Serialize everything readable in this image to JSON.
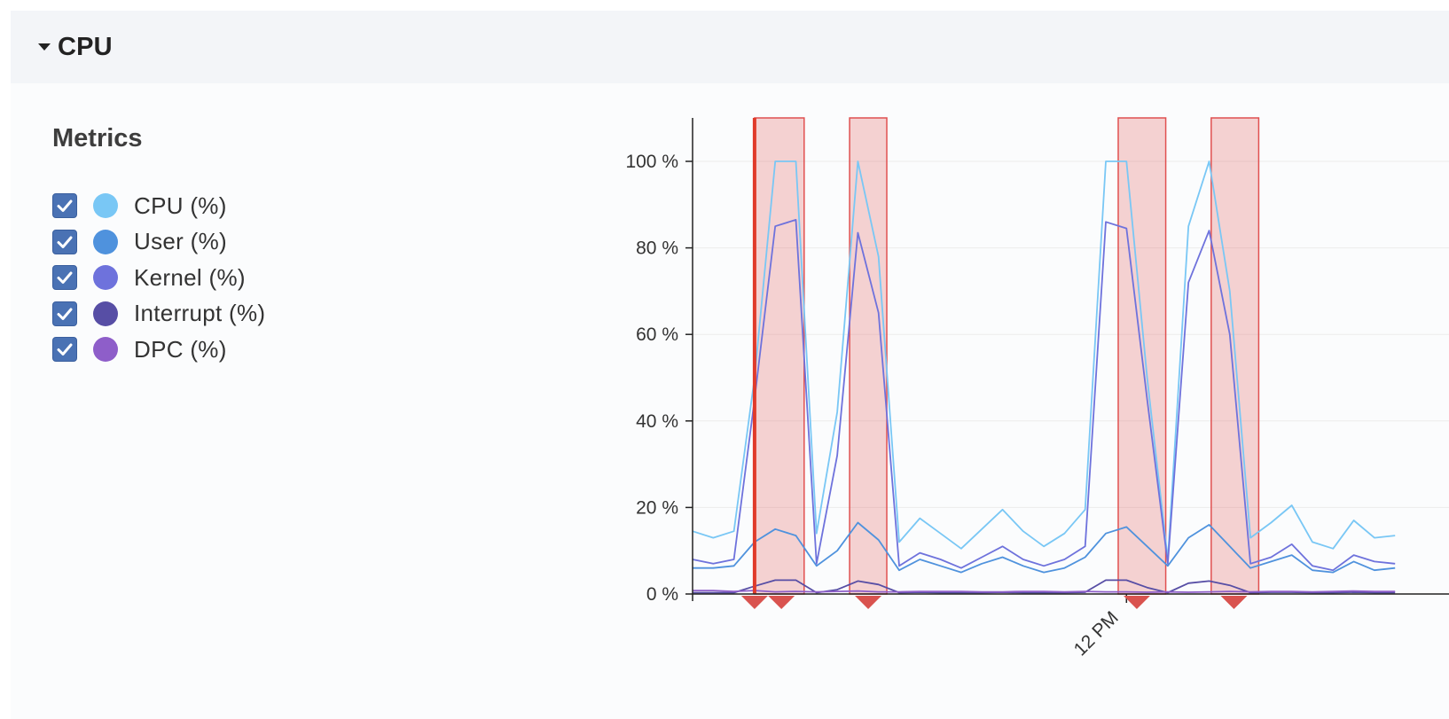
{
  "panel": {
    "title": "CPU",
    "metrics_title": "Metrics"
  },
  "legend": [
    {
      "label": "CPU (%)",
      "color": "#79c7f5",
      "checked": true
    },
    {
      "label": "User (%)",
      "color": "#4f92dd",
      "checked": true
    },
    {
      "label": "Kernel (%)",
      "color": "#6e72dc",
      "checked": true
    },
    {
      "label": "Interrupt (%)",
      "color": "#574ea5",
      "checked": true
    },
    {
      "label": "DPC (%)",
      "color": "#8e5ec9",
      "checked": true
    }
  ],
  "chart_data": {
    "type": "line",
    "ylim": [
      0,
      110
    ],
    "y_ticks": [
      {
        "value": 0,
        "label": "0 %"
      },
      {
        "value": 20,
        "label": "20 %"
      },
      {
        "value": 40,
        "label": "40 %"
      },
      {
        "value": 60,
        "label": "60 %"
      },
      {
        "value": 80,
        "label": "80 %"
      },
      {
        "value": 100,
        "label": "100 %"
      }
    ],
    "x_tick_label": "12 PM",
    "x_tick_index": 21,
    "grid": true,
    "highlight_color": "#e05050",
    "highlights": [
      {
        "start": 3,
        "end": 5.4
      },
      {
        "start": 7.6,
        "end": 9.4
      },
      {
        "start": 20.6,
        "end": 22.9
      },
      {
        "start": 25.1,
        "end": 27.4
      }
    ],
    "alert_markers": [
      3,
      4.3,
      8.5,
      21.5,
      26.2
    ],
    "series": [
      {
        "color": "#79c7f5",
        "values": [
          14.5,
          13,
          14.5,
          50,
          100,
          100,
          14,
          42,
          100,
          78,
          12,
          17.5,
          14,
          10.5,
          15,
          19.5,
          14.5,
          11,
          14,
          19.5,
          100,
          100,
          50,
          8,
          85,
          100,
          70,
          13,
          16.5,
          20.5,
          12,
          10.5,
          17,
          13,
          13.5
        ]
      },
      {
        "color": "#4f92dd",
        "values": [
          6,
          6,
          6.5,
          12,
          15,
          13.5,
          6.5,
          10,
          16.5,
          12.5,
          5.5,
          8,
          6.5,
          5,
          7,
          8.5,
          6.5,
          5,
          6,
          8.5,
          14,
          15.5,
          11,
          6.5,
          13,
          16,
          11,
          6,
          7.5,
          9,
          5.5,
          5,
          7.5,
          5.5,
          6
        ]
      },
      {
        "color": "#6e72dc",
        "values": [
          8,
          7,
          8,
          45,
          85,
          86.5,
          7,
          32,
          83.5,
          65,
          6.5,
          9.5,
          8,
          6,
          8.5,
          11,
          8,
          6.5,
          8,
          11,
          86,
          84.5,
          45,
          7,
          72,
          84,
          60,
          7,
          8.5,
          11.5,
          6.5,
          5.5,
          9,
          7.5,
          7
        ]
      },
      {
        "color": "#574ea5",
        "values": [
          0.3,
          0.3,
          0.3,
          1.8,
          3.2,
          3.2,
          0.3,
          1,
          3,
          2.2,
          0.3,
          0.4,
          0.3,
          0.3,
          0.3,
          0.4,
          0.3,
          0.3,
          0.3,
          0.4,
          3.2,
          3.2,
          1.5,
          0.3,
          2.5,
          3,
          2,
          0.3,
          0.4,
          0.4,
          0.3,
          0.3,
          0.4,
          0.3,
          0.3
        ]
      },
      {
        "color": "#8e5ec9",
        "values": [
          0.8,
          0.8,
          0.6,
          0.8,
          0.5,
          0.6,
          0.5,
          0.6,
          0.7,
          0.5,
          0.5,
          0.6,
          0.6,
          0.6,
          0.5,
          0.5,
          0.6,
          0.6,
          0.5,
          0.6,
          0.5,
          0.5,
          0.4,
          0.5,
          0.4,
          0.5,
          0.6,
          0.5,
          0.6,
          0.6,
          0.5,
          0.6,
          0.7,
          0.6,
          0.6
        ]
      }
    ]
  }
}
